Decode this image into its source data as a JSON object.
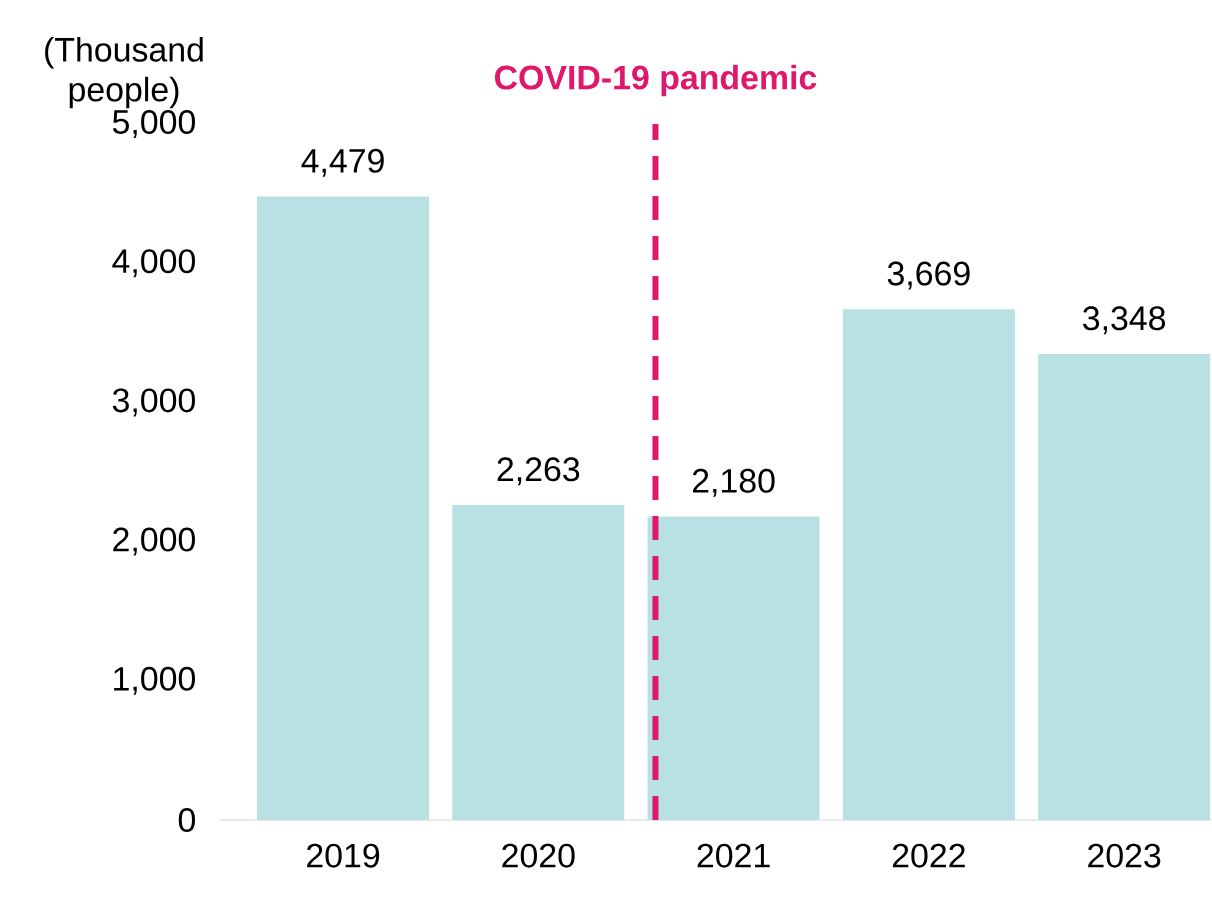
{
  "chart_data": {
    "type": "bar",
    "ylabel": "(Thousand people)",
    "x": [
      2019,
      2020,
      2021,
      2022,
      2023
    ],
    "values": [
      4479,
      2263,
      2180,
      3669,
      3348
    ],
    "value_labels": [
      "4,479",
      "2,263",
      "2,180",
      "3,669",
      "3,348"
    ],
    "color": "#b9e0e3",
    "xlim": [
      2018.37,
      2023.45
    ],
    "xticks": [
      2019,
      2020,
      2021,
      2022,
      2023
    ],
    "ylim": [
      0,
      5000
    ],
    "yticks": [
      {
        "value": 0,
        "label": "0"
      },
      {
        "value": 1000,
        "label": "1,000"
      },
      {
        "value": 2000,
        "label": "2,000"
      },
      {
        "value": 3000,
        "label": "3,000"
      },
      {
        "value": 4000,
        "label": "4,000"
      },
      {
        "value": 5000,
        "label": "5,000"
      }
    ],
    "ref_lines": [
      {
        "axis": "x",
        "value": 2020.6,
        "label": "COVID-19 pandemic",
        "color": "#e0186c",
        "line_style": "dashed"
      }
    ],
    "grid": false
  }
}
